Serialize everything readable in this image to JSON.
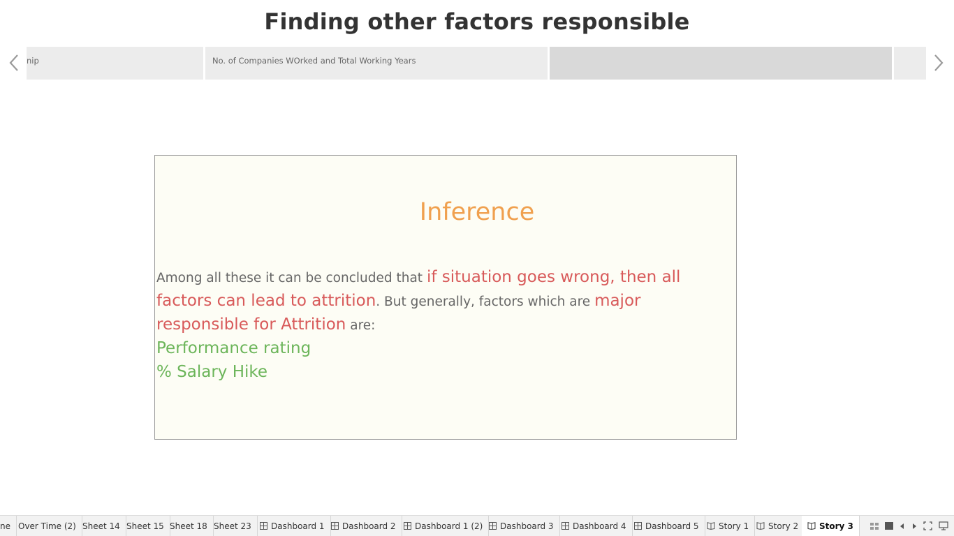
{
  "story": {
    "title": "Finding other factors responsible"
  },
  "story_points": [
    {
      "label": "nip",
      "active": false
    },
    {
      "label": "No. of Companies WOrked and Total Working Years",
      "active": false
    },
    {
      "label": "",
      "active": true
    },
    {
      "label": "",
      "active": false
    }
  ],
  "inference": {
    "title": "Inference",
    "text_1": "Among all these it can be concluded that ",
    "highlight_1": "if situation goes wrong, then all factors can lead to attrition",
    "text_2": ". But generally, factors which are ",
    "highlight_2": "major responsible for Attrition",
    "text_3": " are:",
    "factor_1": "Performance rating",
    "factor_2": "% Salary Hike"
  },
  "tabs": [
    {
      "label": "ne",
      "icon": "none"
    },
    {
      "label": "Over Time (2)",
      "icon": "none"
    },
    {
      "label": "Sheet 14",
      "icon": "none"
    },
    {
      "label": "Sheet 15",
      "icon": "none"
    },
    {
      "label": "Sheet 18",
      "icon": "none"
    },
    {
      "label": "Sheet 23",
      "icon": "none"
    },
    {
      "label": "Dashboard 1",
      "icon": "dashboard-icon"
    },
    {
      "label": "Dashboard 2",
      "icon": "dashboard-icon"
    },
    {
      "label": "Dashboard 1 (2)",
      "icon": "dashboard-icon"
    },
    {
      "label": "Dashboard 3",
      "icon": "dashboard-icon"
    },
    {
      "label": "Dashboard 4",
      "icon": "dashboard-icon"
    },
    {
      "label": "Dashboard 5",
      "icon": "dashboard-icon"
    },
    {
      "label": "Story 1",
      "icon": "story-icon"
    },
    {
      "label": "Story 2",
      "icon": "story-icon"
    },
    {
      "label": "Story 3",
      "icon": "story-icon",
      "active": true
    }
  ],
  "colors": {
    "title_text": "#333333",
    "inference_title": "#f0a04e",
    "highlight_red": "#d85a5a",
    "highlight_green": "#6cb55a",
    "body_text": "#666666",
    "box_background": "#fdfdf5"
  }
}
